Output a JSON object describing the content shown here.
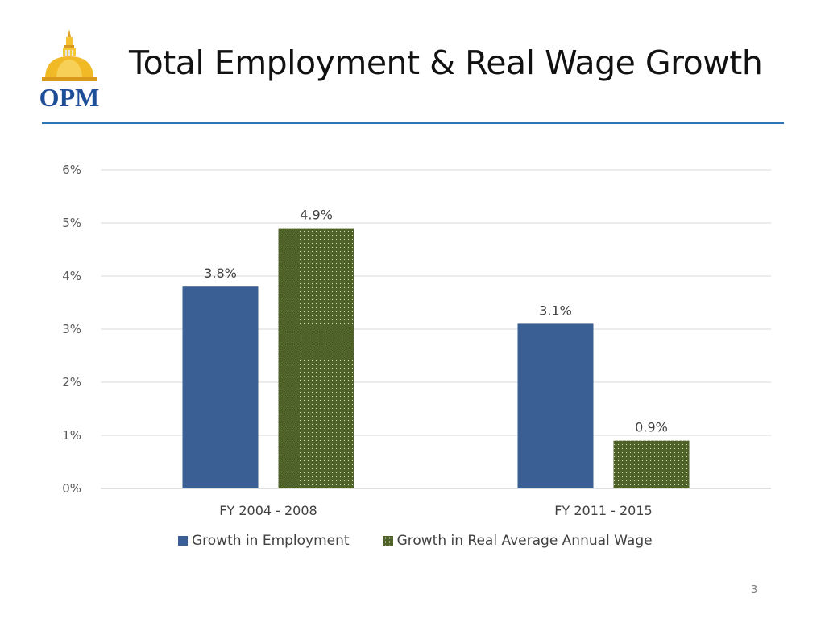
{
  "slide": {
    "title": "Total Employment & Real Wage Growth",
    "logo_text": "OPM",
    "page_number": "3"
  },
  "colors": {
    "employment": "#3a5f94",
    "wage": "#4f6228",
    "wage_dots": "#d8e0c8",
    "rule": "#2e75b6"
  },
  "chart_data": {
    "type": "bar",
    "categories": [
      "FY 2004 - 2008",
      "FY 2011 - 2015"
    ],
    "series": [
      {
        "name": "Growth in Employment",
        "values": [
          3.8,
          3.1
        ],
        "labels": [
          "3.8%",
          "3.1%"
        ],
        "color": "#3a5f94"
      },
      {
        "name": "Growth in Real Average Annual Wage",
        "values": [
          4.9,
          0.9
        ],
        "labels": [
          "4.9%",
          "0.9%"
        ],
        "color": "#4f6228",
        "pattern": "dotted"
      }
    ],
    "yticks": [
      "0%",
      "1%",
      "2%",
      "3%",
      "4%",
      "5%",
      "6%"
    ],
    "ylim": [
      0,
      6
    ],
    "grid": true,
    "legend_position": "bottom"
  }
}
